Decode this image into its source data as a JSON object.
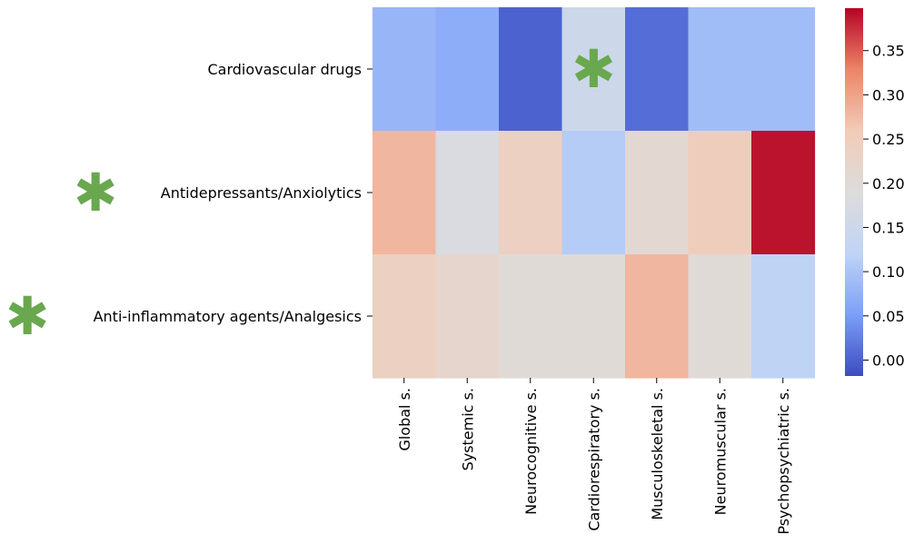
{
  "chart_data": {
    "type": "heatmap",
    "rows": [
      "Cardiovascular drugs",
      "Antidepressants/Anxiolytics",
      "Anti-inflammatory agents/Analgesics"
    ],
    "columns": [
      "Global s.",
      "Systemic s.",
      "Neurocognitive s.",
      "Cardiorespiratory s.",
      "Musculoskeletal s.",
      "Neuromuscular s.",
      "Psychopsychiatric s."
    ],
    "values": [
      [
        0.08,
        0.07,
        0.0,
        0.15,
        0.01,
        0.09,
        0.09
      ],
      [
        0.28,
        0.18,
        0.24,
        0.11,
        0.21,
        0.25,
        0.39
      ],
      [
        0.24,
        0.22,
        0.2,
        0.2,
        0.28,
        0.2,
        0.12
      ]
    ],
    "colorbar": {
      "min": -0.018,
      "max": 0.398,
      "ticks": [
        0.0,
        0.05,
        0.1,
        0.15,
        0.2,
        0.25,
        0.3,
        0.35
      ],
      "tick_labels": [
        "0.00",
        "0.05",
        "0.10",
        "0.15",
        "0.20",
        "0.25",
        "0.30",
        "0.35"
      ],
      "colormap": "coolwarm",
      "colormap_stops": [
        "#3b4cc0",
        "#7b9ff9",
        "#c0d4f5",
        "#dddcdc",
        "#f2cbb7",
        "#ee8468",
        "#b40426"
      ]
    },
    "significance_markers": [
      {
        "type": "row",
        "row": 1
      },
      {
        "type": "row",
        "row": 2
      },
      {
        "type": "cell",
        "row": 0,
        "col": 3
      }
    ],
    "marker_symbol": "✱",
    "marker_color": "#6aa84f"
  }
}
